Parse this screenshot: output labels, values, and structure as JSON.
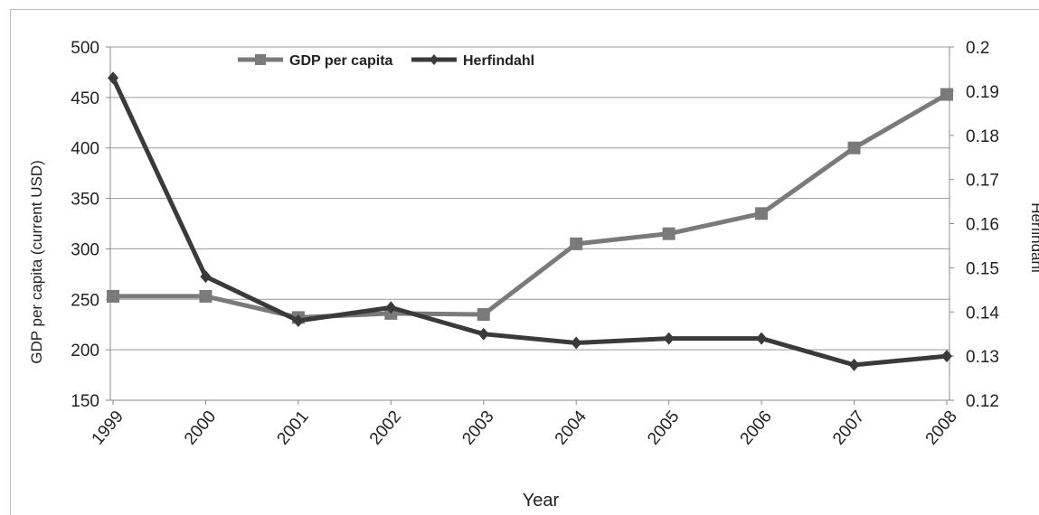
{
  "chart_data": {
    "type": "line",
    "categories": [
      "1999",
      "2000",
      "2001",
      "2002",
      "2003",
      "2004",
      "2005",
      "2006",
      "2007",
      "2008"
    ],
    "series": [
      {
        "name": "GDP per capita",
        "axis": "left",
        "color": "#7a7a7a",
        "marker": "square",
        "values": [
          253,
          253,
          232,
          236,
          235,
          305,
          315,
          335,
          400,
          453
        ]
      },
      {
        "name": "Herfindahl",
        "axis": "right",
        "color": "#3a3a3a",
        "marker": "diamond",
        "values": [
          0.193,
          0.148,
          0.138,
          0.141,
          0.135,
          0.133,
          0.134,
          0.134,
          0.128,
          0.13
        ]
      }
    ],
    "xlabel": "Year",
    "ylabel": "GDP per capita (current USD)",
    "y2label": "Herfindahl",
    "ylim": [
      150,
      500
    ],
    "y2lim": [
      0.12,
      0.2
    ],
    "yticks": [
      "500",
      "450",
      "400",
      "350",
      "300",
      "250",
      "200",
      "150"
    ],
    "y2ticks": [
      "0.2",
      "0.19",
      "0.18",
      "0.17",
      "0.16",
      "0.15",
      "0.14",
      "0.13",
      "0.12"
    ],
    "grid": "horizontal",
    "legend": "top-center"
  }
}
